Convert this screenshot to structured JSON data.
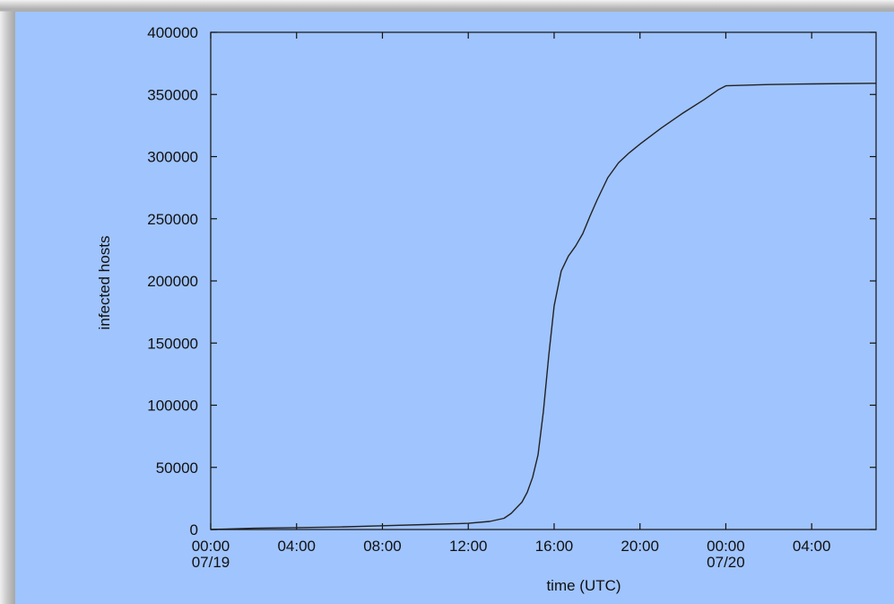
{
  "chart_data": {
    "type": "line",
    "xlabel": "time (UTC)",
    "ylabel": "infected hosts",
    "x_unit": "UTC time, starting 07/19",
    "xlim": [
      "07/19 00:00",
      "07/20 07:00"
    ],
    "ylim": [
      0,
      400000
    ],
    "grid": false,
    "x_ticks": [
      {
        "time": "07/19 00:00",
        "label": "00:00",
        "sublabel": "07/19"
      },
      {
        "time": "07/19 04:00",
        "label": "04:00",
        "sublabel": ""
      },
      {
        "time": "07/19 08:00",
        "label": "08:00",
        "sublabel": ""
      },
      {
        "time": "07/19 12:00",
        "label": "12:00",
        "sublabel": ""
      },
      {
        "time": "07/19 16:00",
        "label": "16:00",
        "sublabel": ""
      },
      {
        "time": "07/19 20:00",
        "label": "20:00",
        "sublabel": ""
      },
      {
        "time": "07/20 00:00",
        "label": "00:00",
        "sublabel": "07/20"
      },
      {
        "time": "07/20 04:00",
        "label": "04:00",
        "sublabel": ""
      }
    ],
    "y_ticks": [
      0,
      50000,
      100000,
      150000,
      200000,
      250000,
      300000,
      350000,
      400000
    ],
    "y_tick_labels": [
      "0",
      "50000",
      "100000",
      "150000",
      "200000",
      "250000",
      "300000",
      "350000",
      "400000"
    ],
    "series": [
      {
        "color": "#222222",
        "points": [
          [
            "07/19 00:00",
            0
          ],
          [
            "07/19 02:00",
            1000
          ],
          [
            "07/19 04:00",
            1500
          ],
          [
            "07/19 06:00",
            2000
          ],
          [
            "07/19 08:00",
            3000
          ],
          [
            "07/19 10:00",
            4000
          ],
          [
            "07/19 12:00",
            5000
          ],
          [
            "07/19 13:00",
            6500
          ],
          [
            "07/19 13:40",
            9000
          ],
          [
            "07/19 14:00",
            13000
          ],
          [
            "07/19 14:30",
            22000
          ],
          [
            "07/19 14:45",
            30000
          ],
          [
            "07/19 15:00",
            42000
          ],
          [
            "07/19 15:15",
            60000
          ],
          [
            "07/19 15:30",
            95000
          ],
          [
            "07/19 15:45",
            140000
          ],
          [
            "07/19 16:00",
            180000
          ],
          [
            "07/19 16:20",
            208000
          ],
          [
            "07/19 16:40",
            220000
          ],
          [
            "07/19 17:00",
            228000
          ],
          [
            "07/19 17:20",
            238000
          ],
          [
            "07/19 17:40",
            252000
          ],
          [
            "07/19 18:00",
            265000
          ],
          [
            "07/19 18:30",
            283000
          ],
          [
            "07/19 19:00",
            295000
          ],
          [
            "07/19 19:30",
            303000
          ],
          [
            "07/19 20:00",
            310000
          ],
          [
            "07/19 21:00",
            323000
          ],
          [
            "07/19 22:00",
            335000
          ],
          [
            "07/19 23:00",
            346000
          ],
          [
            "07/19 23:40",
            354000
          ],
          [
            "07/20 00:00",
            357000
          ],
          [
            "07/20 02:00",
            358000
          ],
          [
            "07/20 04:00",
            358500
          ],
          [
            "07/20 07:00",
            359000
          ]
        ]
      }
    ]
  }
}
